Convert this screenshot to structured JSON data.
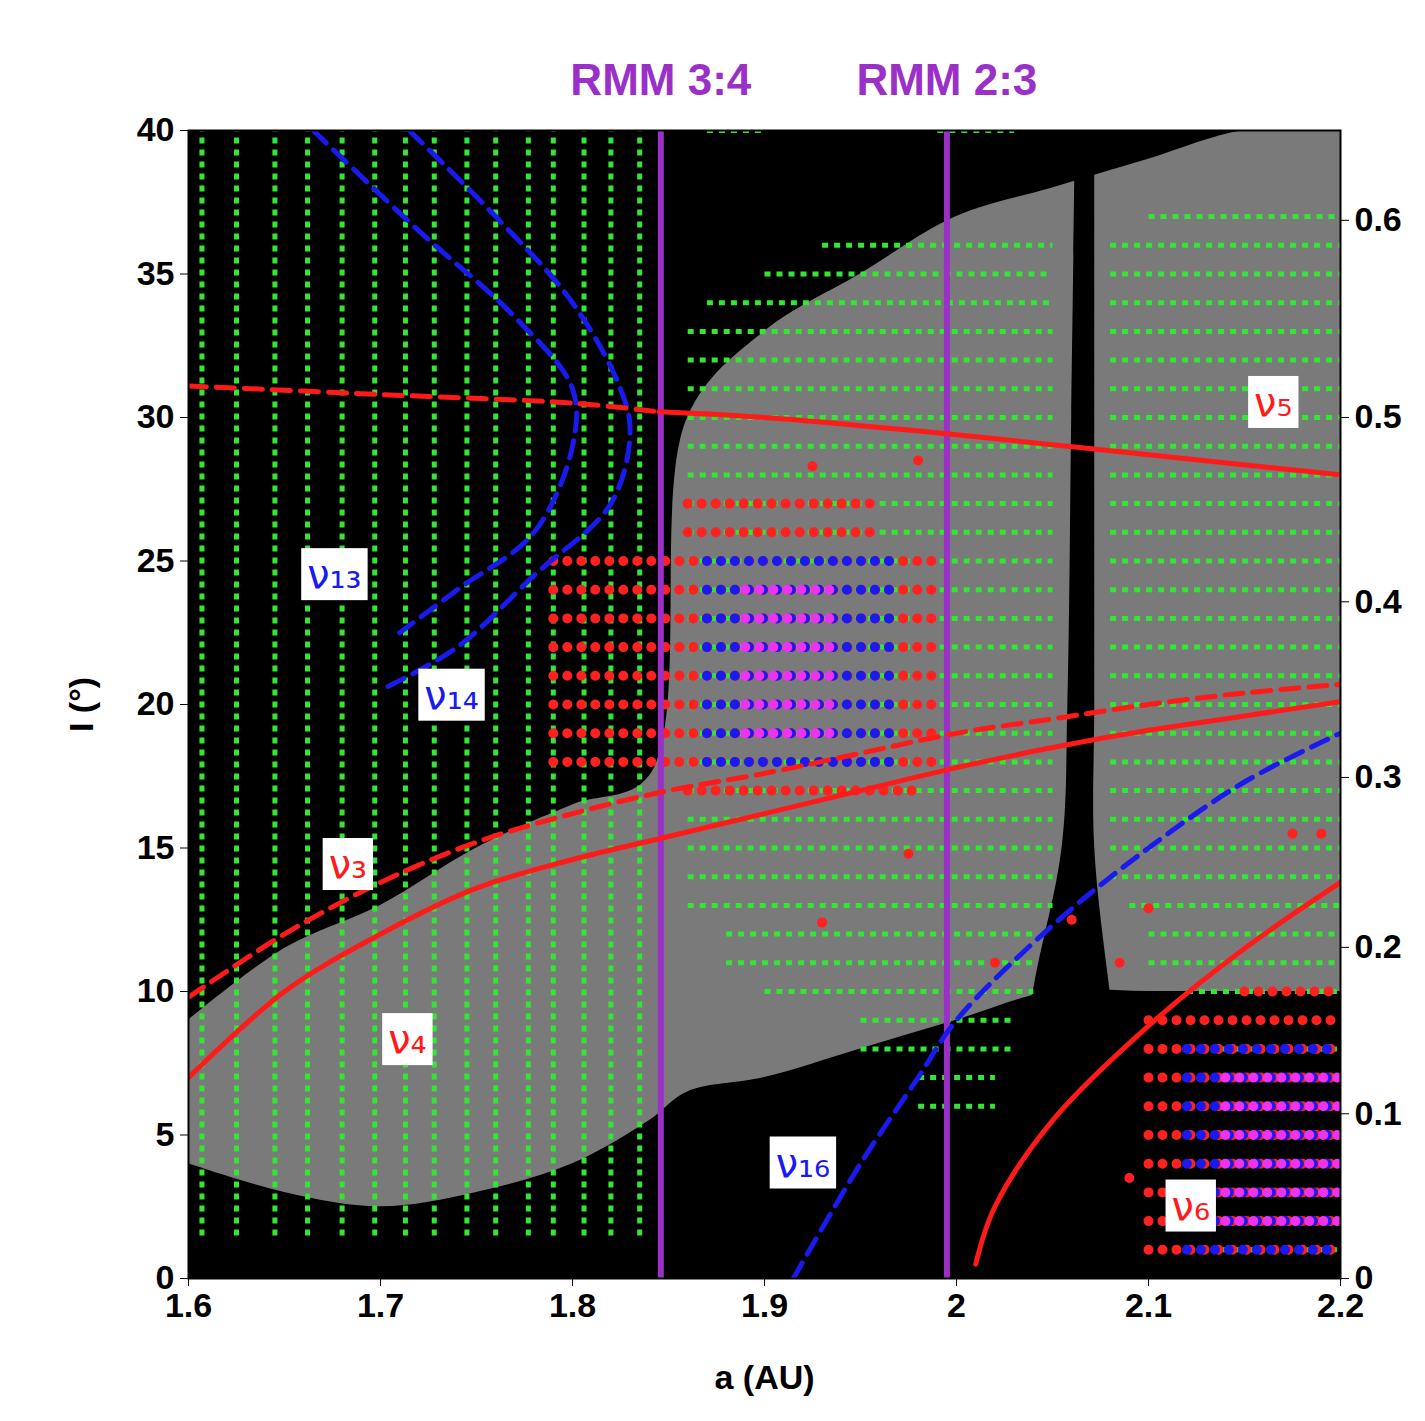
{
  "chart_data": {
    "type": "scatter",
    "x_label": "a (AU)",
    "y_label": "I (°)",
    "xlim": [
      1.6,
      2.2
    ],
    "xticks": [
      1.6,
      1.7,
      1.8,
      1.9,
      2,
      2.1,
      2.2
    ],
    "ylim": [
      0,
      40
    ],
    "yticks": [
      0,
      5,
      10,
      15,
      20,
      25,
      30,
      35,
      40
    ],
    "y2lim": [
      0,
      0.643
    ],
    "y2ticks": [
      0,
      0.1,
      0.2,
      0.3,
      0.4,
      0.5,
      0.6
    ],
    "resonance_lines": [
      {
        "name": "RMM 3:4",
        "a": 1.846,
        "color": "#9b30c8"
      },
      {
        "name": "RMM 2:3",
        "a": 1.995,
        "color": "#9b30c8"
      }
    ],
    "series": [
      {
        "name": "ν₁₃",
        "color": "#1a1aee",
        "parts": [
          {
            "line_style": "dashed",
            "x": [
              1.665,
              1.72,
              1.77,
              1.8,
              1.8,
              1.78,
              1.74,
              1.71
            ],
            "y": [
              40,
              36.5,
              33.5,
              31,
              29,
              26,
              24,
              22.5
            ]
          }
        ]
      },
      {
        "name": "ν₁₄",
        "color": "#1a1aee",
        "parts": [
          {
            "line_style": "dashed",
            "x": [
              1.715,
              1.76,
              1.8,
              1.825,
              1.83,
              1.82,
              1.78,
              1.74,
              1.7
            ],
            "y": [
              40,
              37,
              34,
              31,
              29.5,
              27,
              24.5,
              22,
              20.5
            ]
          }
        ]
      },
      {
        "name": "ν₃",
        "color": "#ff1a1a",
        "parts": [
          {
            "line_style": "dashed",
            "x": [
              1.6,
              1.65,
              1.7,
              1.75,
              1.8,
              1.85,
              1.9,
              1.95,
              2,
              2.05,
              2.1,
              2.15,
              2.2
            ],
            "y": [
              9.8,
              12,
              13.8,
              15.2,
              16.2,
              17,
              17.6,
              18.3,
              19,
              19.5,
              20,
              20.4,
              20.7
            ]
          }
        ]
      },
      {
        "name": "ν₄",
        "color": "#ff1a1a",
        "parts": [
          {
            "line_style": "solid",
            "x": [
              1.6,
              1.65,
              1.7,
              1.75,
              1.8,
              1.85,
              1.9,
              1.95,
              2,
              2.05,
              2.1,
              2.15,
              2.2
            ],
            "y": [
              7,
              10,
              12,
              13.6,
              14.6,
              15.4,
              16.2,
              17,
              17.8,
              18.5,
              19.1,
              19.6,
              20.1
            ]
          }
        ]
      },
      {
        "name": "ν₅",
        "color": "#ff1a1a",
        "parts": [
          {
            "line_style": "dashed",
            "x": [
              1.6,
              1.7,
              1.8,
              1.845
            ],
            "y": [
              31.1,
              30.8,
              30.5,
              30.2
            ]
          },
          {
            "line_style": "solid",
            "x": [
              1.845,
              1.9,
              2,
              2.1,
              2.2
            ],
            "y": [
              30.2,
              30,
              29.4,
              28.7,
              28
            ]
          }
        ]
      },
      {
        "name": "ν₆",
        "color": "#ff1a1a",
        "parts": [
          {
            "line_style": "solid",
            "x": [
              2.01,
              2.02,
              2.05,
              2.1,
              2.15,
              2.2
            ],
            "y": [
              0.5,
              2.5,
              5.5,
              8.8,
              11.5,
              13.8
            ]
          }
        ]
      },
      {
        "name": "ν₁₆",
        "color": "#1a1aee",
        "parts": [
          {
            "line_style": "dashed",
            "x": [
              1.915,
              1.95,
              1.98,
              2,
              2.05,
              2.1,
              2.15,
              2.2
            ],
            "y": [
              0,
              4,
              7,
              9,
              12.3,
              15,
              17.3,
              19
            ]
          }
        ]
      }
    ],
    "background": {
      "color": "#7a7a7a",
      "a": [
        1.6,
        1.65,
        1.7,
        1.75,
        1.8,
        1.84,
        1.86,
        1.9,
        1.95,
        2.0,
        2.05,
        2.1,
        2.15,
        2.2
      ],
      "I_low": [
        4,
        3,
        2.5,
        3,
        4,
        5.5,
        6.5,
        7,
        8,
        9,
        10,
        10,
        10,
        10
      ],
      "I_high": [
        9,
        11.5,
        13,
        15,
        16.5,
        17.5,
        30,
        33,
        35,
        37,
        38,
        39,
        40,
        40
      ]
    },
    "gap": {
      "color": "#000000",
      "I": [
        0,
        5,
        10,
        15,
        20,
        30,
        40
      ],
      "a_low": [
        2.02,
        2.03,
        2.04,
        2.055,
        2.058,
        2.06,
        2.062
      ],
      "a_high": [
        2.1,
        2.09,
        2.08,
        2.072,
        2.072,
        2.072,
        2.072
      ]
    },
    "grid_points": [
      {
        "color": "#33e633",
        "marker": "square",
        "columns": [
          {
            "a": [
              1.607,
              1.625,
              1.645,
              1.662,
              1.68,
              1.697,
              1.713,
              1.728,
              1.745,
              1.76,
              1.777,
              1.79,
              1.806,
              1.82,
              1.835
            ],
            "I": [
              [
                1.5,
                40
              ]
            ]
          }
        ],
        "rows": [
          {
            "I": [
              40
            ],
            "a": [
              [
                1.87,
                1.9
              ],
              [
                1.99,
                2.03
              ]
            ]
          },
          {
            "I": [
              37
            ],
            "a": [
              [
                2.1,
                2.2
              ]
            ]
          },
          {
            "I": [
              36
            ],
            "a": [
              [
                1.93,
                2.05
              ],
              [
                2.08,
                2.2
              ]
            ]
          },
          {
            "I": [
              35
            ],
            "a": [
              [
                1.9,
                2.05
              ],
              [
                2.08,
                2.2
              ]
            ]
          },
          {
            "I": [
              34
            ],
            "a": [
              [
                1.87,
                2.05
              ],
              [
                2.08,
                2.2
              ]
            ]
          },
          {
            "I": [
              14,
              15,
              16,
              17,
              18,
              19,
              20,
              21,
              22,
              23,
              24,
              25,
              26,
              27,
              28,
              29,
              30,
              31,
              32,
              33
            ],
            "a": [
              [
                1.86,
                2.05
              ],
              [
                2.08,
                2.2
              ]
            ]
          },
          {
            "I": [
              13
            ],
            "a": [
              [
                1.86,
                2.05
              ],
              [
                2.09,
                2.2
              ]
            ]
          },
          {
            "I": [
              11,
              12
            ],
            "a": [
              [
                1.88,
                2.04
              ],
              [
                2.1,
                2.2
              ]
            ]
          },
          {
            "I": [
              10
            ],
            "a": [
              [
                1.9,
                2.04
              ],
              [
                2.12,
                2.2
              ]
            ]
          },
          {
            "I": [
              8,
              9
            ],
            "a": [
              [
                1.95,
                2.03
              ]
            ]
          },
          {
            "I": [
              6,
              7
            ],
            "a": [
              [
                1.98,
                2.02
              ]
            ]
          },
          {
            "I": [
              1,
              2,
              3,
              4,
              5,
              6,
              7,
              8
            ],
            "a": [
              [
                2.12,
                2.2
              ]
            ]
          }
        ]
      },
      {
        "color": "#ff2020",
        "marker": "circle",
        "columns": [],
        "rows": [
          {
            "I": [
              17
            ],
            "a": [
              [
                1.86,
                1.98
              ]
            ]
          },
          {
            "I": [
              18,
              19,
              20,
              21,
              22,
              23,
              24,
              25
            ],
            "a": [
              [
                1.79,
                1.99
              ]
            ]
          },
          {
            "I": [
              26,
              27
            ],
            "a": [
              [
                1.86,
                1.96
              ]
            ]
          },
          {
            "I": [
              1,
              2,
              3,
              4,
              5,
              6,
              7,
              8,
              9
            ],
            "a": [
              [
                2.1,
                2.2
              ]
            ]
          },
          {
            "I": [
              10
            ],
            "a": [
              [
                2.15,
                2.2
              ]
            ]
          }
        ]
      },
      {
        "color": "#1a1aee",
        "marker": "circle",
        "columns": [],
        "rows": [
          {
            "I": [
              18,
              19,
              20,
              21,
              22,
              23,
              24,
              25
            ],
            "a": [
              [
                1.87,
                1.97
              ]
            ]
          },
          {
            "I": [
              1,
              2,
              3,
              4,
              5,
              6,
              7,
              8
            ],
            "a": [
              [
                2.12,
                2.2
              ]
            ]
          }
        ]
      },
      {
        "color": "#ee33ee",
        "marker": "circle",
        "columns": [],
        "rows": [
          {
            "I": [
              19,
              20,
              21,
              22,
              23,
              24
            ],
            "a": [
              [
                1.89,
                1.94
              ]
            ]
          },
          {
            "I": [
              2,
              3,
              4,
              5,
              6,
              7
            ],
            "a": [
              [
                2.14,
                2.2
              ]
            ]
          }
        ]
      }
    ],
    "points": {
      "color": "#ff2020",
      "a": [
        1.98,
        1.925,
        1.93,
        1.975,
        2.02,
        2.1,
        2.085,
        2.175,
        2.19,
        2.06,
        2.09
      ],
      "I": [
        28.5,
        28.3,
        12.4,
        14.8,
        11,
        12.9,
        11,
        15.5,
        15.5,
        12.5,
        3.5
      ]
    }
  }
}
